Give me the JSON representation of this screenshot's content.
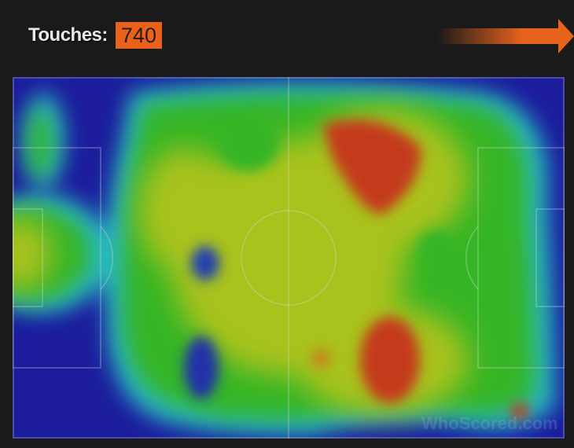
{
  "header": {
    "label": "Touches:",
    "value": "740"
  },
  "colors": {
    "accent": "#e8621c",
    "background": "#1a1a1a",
    "heat_low": "#1c1c9c",
    "heat_mid": "#2fb52a",
    "heat_high": "#c43a1a"
  },
  "icons": {
    "direction": "arrow-right-icon"
  },
  "watermark": "WhoScored.com"
}
